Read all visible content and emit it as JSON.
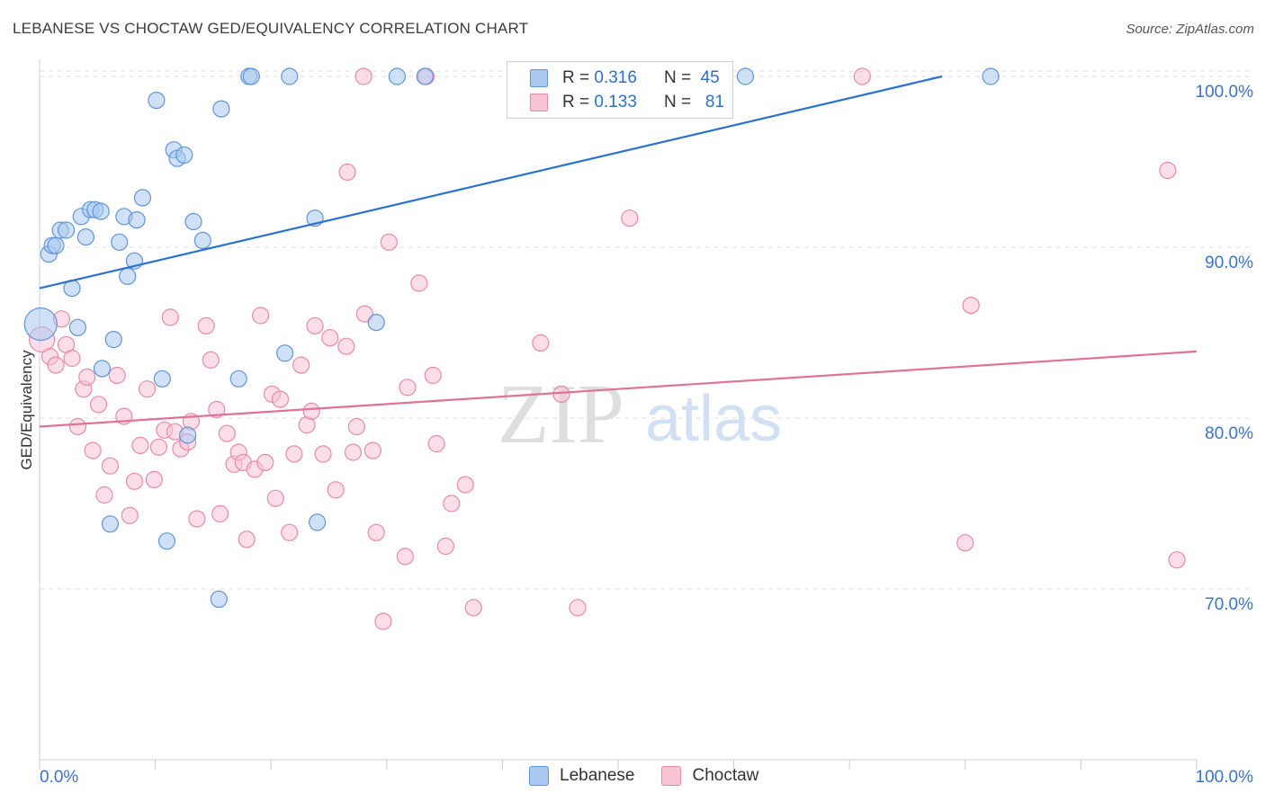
{
  "title": "LEBANESE VS CHOCTAW GED/EQUIVALENCY CORRELATION CHART",
  "source": "Source: ZipAtlas.com",
  "watermark": {
    "zip": "ZIP",
    "atlas": "atlas"
  },
  "colors": {
    "blue_fill": "#aac8f0",
    "blue_stroke": "#5f95d8",
    "blue_line": "#2b72d0",
    "pink_fill": "#f8c3d3",
    "pink_stroke": "#e88aa6",
    "pink_line": "#e2719a",
    "tick_label": "#3a74c8",
    "grid": "#dedede",
    "axis": "#cccccc"
  },
  "legend_top": [
    {
      "r_label": "R =",
      "r_value": "0.316",
      "n_label": "N =",
      "n_value": "45"
    },
    {
      "r_label": "R =",
      "r_value": "0.133",
      "n_label": "N =",
      "n_value": "81"
    }
  ],
  "chart_data": {
    "type": "scatter",
    "title": "LEBANESE VS CHOCTAW GED/EQUIVALENCY CORRELATION CHART",
    "xlabel": "",
    "ylabel": "GED/Equivalency",
    "xlim": [
      0,
      100
    ],
    "ylim": [
      60,
      101
    ],
    "x_tick_labels": [
      "0.0%",
      "100.0%"
    ],
    "y_ticks": [
      70,
      80,
      90,
      100
    ],
    "y_tick_labels": [
      "70.0%",
      "80.0%",
      "90.0%",
      "100.0%"
    ],
    "grid": true,
    "legend": "bottom",
    "series": [
      {
        "name": "Lebanese",
        "color": "blue",
        "trend": [
          [
            0,
            87.6
          ],
          [
            78,
            100
          ]
        ],
        "points": [
          [
            0.1,
            85.5
          ],
          [
            0.8,
            89.6
          ],
          [
            1.1,
            90.1
          ],
          [
            1.4,
            90.1
          ],
          [
            1.8,
            91.0
          ],
          [
            2.3,
            91.0
          ],
          [
            2.8,
            87.6
          ],
          [
            3.3,
            85.3
          ],
          [
            3.6,
            91.8
          ],
          [
            4.0,
            90.6
          ],
          [
            4.4,
            92.2
          ],
          [
            4.8,
            92.2
          ],
          [
            5.3,
            92.1
          ],
          [
            5.4,
            82.9
          ],
          [
            6.1,
            73.8
          ],
          [
            6.4,
            84.6
          ],
          [
            6.9,
            90.3
          ],
          [
            7.3,
            91.8
          ],
          [
            7.6,
            88.3
          ],
          [
            8.2,
            89.2
          ],
          [
            8.4,
            91.6
          ],
          [
            8.9,
            92.9
          ],
          [
            10.1,
            98.6
          ],
          [
            10.6,
            82.3
          ],
          [
            11.0,
            72.8
          ],
          [
            11.6,
            95.7
          ],
          [
            11.9,
            95.2
          ],
          [
            12.5,
            95.4
          ],
          [
            12.8,
            79.0
          ],
          [
            13.3,
            91.5
          ],
          [
            14.1,
            90.4
          ],
          [
            15.5,
            69.4
          ],
          [
            15.7,
            98.1
          ],
          [
            17.2,
            82.3
          ],
          [
            18.1,
            100.0
          ],
          [
            18.3,
            100.0
          ],
          [
            21.2,
            83.8
          ],
          [
            21.6,
            100.0
          ],
          [
            23.8,
            91.7
          ],
          [
            24.0,
            73.9
          ],
          [
            29.1,
            85.6
          ],
          [
            30.9,
            100.0
          ],
          [
            33.3,
            100.0
          ],
          [
            61.0,
            100.0
          ],
          [
            82.2,
            100.0
          ]
        ]
      },
      {
        "name": "Choctaw",
        "color": "pink",
        "trend": [
          [
            0,
            79.5
          ],
          [
            100,
            83.9
          ]
        ],
        "points": [
          [
            0.2,
            84.6
          ],
          [
            0.9,
            83.6
          ],
          [
            1.4,
            83.1
          ],
          [
            1.9,
            85.8
          ],
          [
            2.3,
            84.3
          ],
          [
            2.8,
            83.5
          ],
          [
            3.3,
            79.5
          ],
          [
            3.8,
            81.7
          ],
          [
            4.1,
            82.4
          ],
          [
            4.6,
            78.1
          ],
          [
            5.1,
            80.8
          ],
          [
            5.6,
            75.5
          ],
          [
            6.1,
            77.2
          ],
          [
            6.7,
            82.5
          ],
          [
            7.3,
            80.1
          ],
          [
            7.8,
            74.3
          ],
          [
            8.2,
            76.3
          ],
          [
            8.7,
            78.4
          ],
          [
            9.3,
            81.7
          ],
          [
            9.9,
            76.4
          ],
          [
            10.3,
            78.3
          ],
          [
            10.8,
            79.3
          ],
          [
            11.3,
            85.9
          ],
          [
            11.7,
            79.2
          ],
          [
            12.2,
            78.2
          ],
          [
            12.8,
            78.6
          ],
          [
            13.1,
            79.8
          ],
          [
            13.6,
            74.1
          ],
          [
            14.4,
            85.4
          ],
          [
            14.8,
            83.4
          ],
          [
            15.3,
            80.5
          ],
          [
            15.6,
            74.4
          ],
          [
            16.2,
            79.1
          ],
          [
            16.8,
            77.3
          ],
          [
            17.2,
            78.0
          ],
          [
            17.6,
            77.4
          ],
          [
            17.9,
            72.9
          ],
          [
            18.6,
            77.0
          ],
          [
            19.1,
            86.0
          ],
          [
            19.5,
            77.4
          ],
          [
            20.1,
            81.4
          ],
          [
            20.4,
            75.3
          ],
          [
            20.8,
            81.1
          ],
          [
            21.6,
            73.3
          ],
          [
            22.0,
            77.9
          ],
          [
            22.6,
            83.1
          ],
          [
            23.1,
            79.6
          ],
          [
            23.5,
            80.4
          ],
          [
            23.8,
            85.4
          ],
          [
            24.5,
            77.9
          ],
          [
            25.1,
            84.7
          ],
          [
            25.6,
            75.8
          ],
          [
            26.5,
            84.2
          ],
          [
            27.1,
            78.0
          ],
          [
            27.4,
            79.5
          ],
          [
            28.1,
            86.1
          ],
          [
            28.8,
            78.1
          ],
          [
            29.1,
            73.3
          ],
          [
            29.7,
            68.1
          ],
          [
            30.2,
            90.3
          ],
          [
            31.6,
            71.9
          ],
          [
            31.8,
            81.8
          ],
          [
            32.8,
            87.9
          ],
          [
            34.0,
            82.5
          ],
          [
            34.3,
            78.5
          ],
          [
            35.1,
            72.5
          ],
          [
            35.6,
            75.0
          ],
          [
            36.8,
            76.1
          ],
          [
            37.5,
            68.9
          ],
          [
            43.3,
            84.4
          ],
          [
            45.1,
            81.4
          ],
          [
            46.5,
            68.9
          ],
          [
            51.0,
            91.7
          ],
          [
            28.0,
            100.0
          ],
          [
            33.4,
            100.0
          ],
          [
            71.1,
            100.0
          ],
          [
            26.6,
            94.4
          ],
          [
            80.0,
            72.7
          ],
          [
            80.5,
            86.6
          ],
          [
            97.5,
            94.5
          ],
          [
            98.3,
            71.7
          ]
        ]
      }
    ]
  }
}
